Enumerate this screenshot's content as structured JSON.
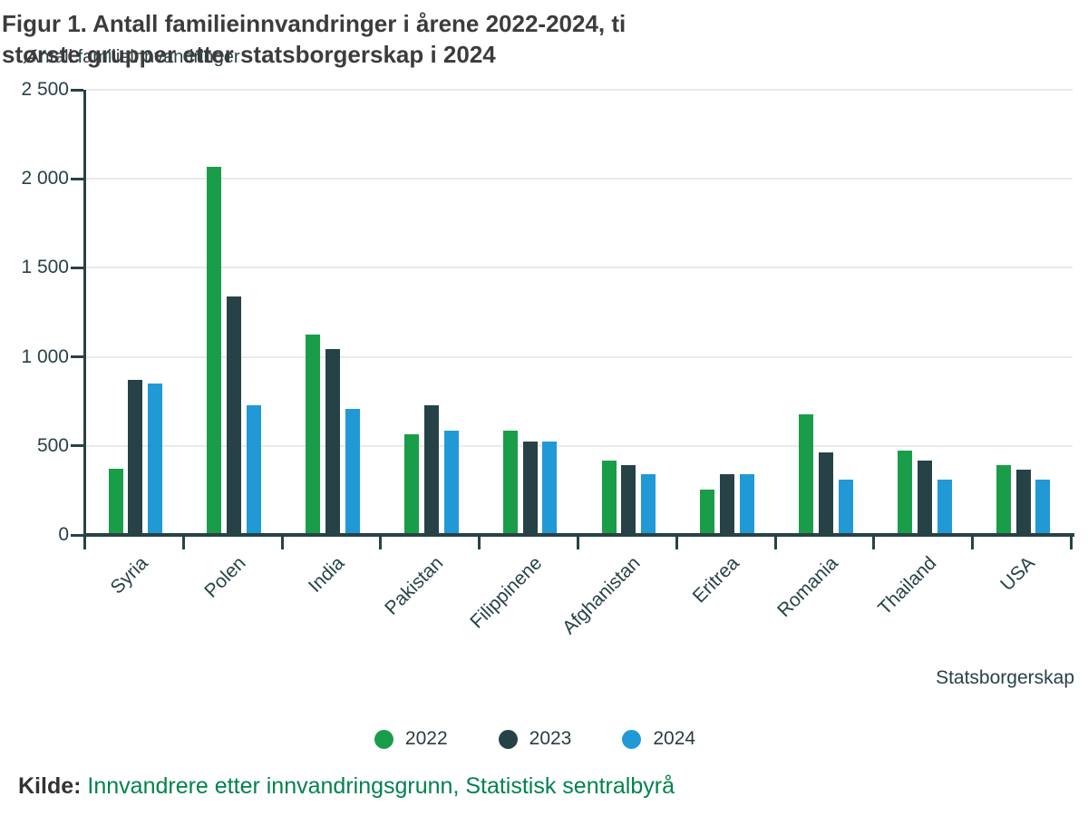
{
  "header": {
    "title_line1": "Figur 1. Antall familieinnvandringer i årene 2022-2024, ti",
    "title_line2": "største grupper etter statsborgerskap i 2024"
  },
  "chart_data": {
    "type": "bar",
    "title": "Figur 1. Antall familieinnvandringer i årene 2022-2024, ti største grupper etter statsborgerskap i 2024",
    "ylabel": "Antall familieinnvandringer",
    "xlabel": "Statsborgerskap",
    "categories": [
      "Syria",
      "Polen",
      "India",
      "Pakistan",
      "Filippinene",
      "Afghanistan",
      "Eritrea",
      "Romania",
      "Thailand",
      "USA"
    ],
    "series": [
      {
        "name": "2022",
        "color": "#1a9d49",
        "values": [
          370,
          2065,
          1125,
          565,
          585,
          420,
          255,
          675,
          475,
          390
        ]
      },
      {
        "name": "2023",
        "color": "#274247",
        "values": [
          870,
          1340,
          1045,
          730,
          525,
          390,
          340,
          465,
          415,
          365
        ]
      },
      {
        "name": "2024",
        "color": "#2199d6",
        "values": [
          850,
          730,
          710,
          585,
          525,
          340,
          340,
          310,
          310,
          310
        ]
      }
    ],
    "ylim": [
      0,
      2500
    ],
    "ytick_interval": 500,
    "ytick_labels": [
      "0",
      "500",
      "1 000",
      "1 500",
      "2 000",
      "2 500"
    ],
    "grid": "horizontal",
    "legend_position": "bottom"
  },
  "source": {
    "label": "Kilde:",
    "link_text": "Innvandrere etter innvandringsgrunn, Statistisk sentralbyrå"
  },
  "colors": {
    "axis": "#274247",
    "grid": "#eaeaea",
    "title_text": "#3c3c3c",
    "link_green": "#00824d",
    "series_2022": "#1a9d49",
    "series_2023": "#274247",
    "series_2024": "#2199d6"
  }
}
